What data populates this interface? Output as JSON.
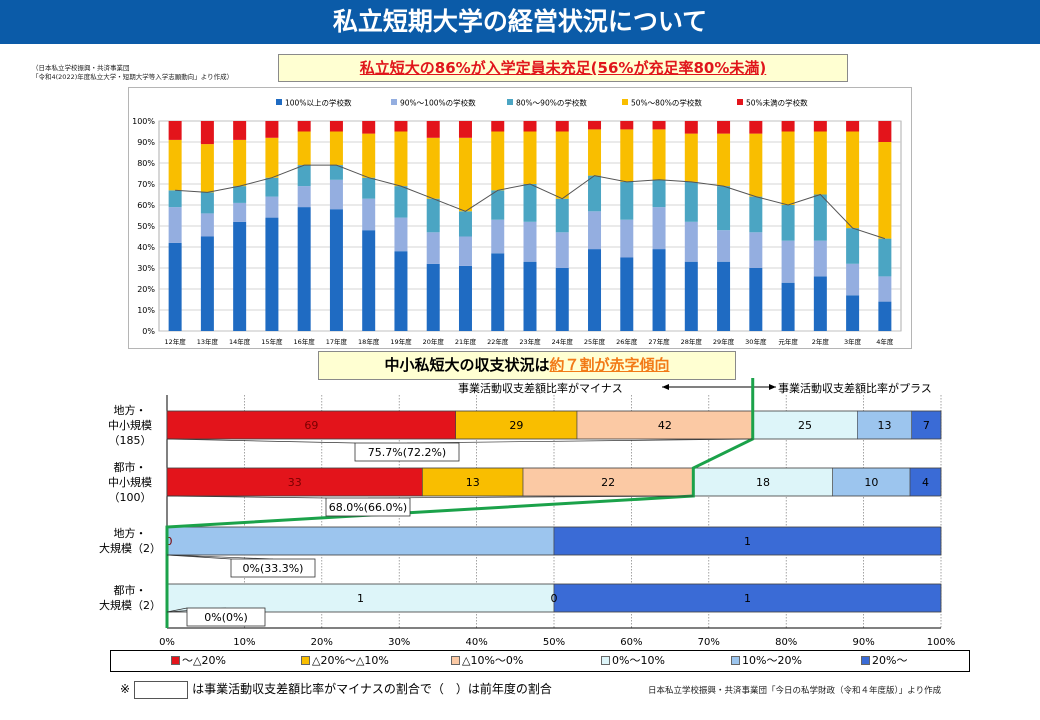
{
  "title": "私立短期大学の経営状況について",
  "source_top": [
    "（日本私立学校振興・共済事業団",
    "「令和4(2022)年度私立大学・短期大学等入学志願動向」より作成）"
  ],
  "callout_1": "私立短大の86%が入学定員未充足(56%が充足率80%未満)",
  "callout_2": {
    "prefix": "中小私短大の収支状況は",
    "emphasis": "約７割が赤字傾向"
  },
  "source_bottom": "日本私立学校振興・共済事業団「今日の私学財政（令和４年度版）」より作成",
  "note": {
    "mark": "※",
    "text": "は事業活動収支差額比率がマイナスの割合で（　）は前年度の割合"
  },
  "arrows": {
    "minus": "事業活動収支差額比率がマイナス",
    "plus": "事業活動収支差額比率がプラス"
  },
  "chart_data": [
    {
      "type": "bar",
      "stacked": true,
      "categories": [
        "12年度",
        "13年度",
        "14年度",
        "15年度",
        "16年度",
        "17年度",
        "18年度",
        "19年度",
        "20年度",
        "21年度",
        "22年度",
        "23年度",
        "24年度",
        "25年度",
        "26年度",
        "27年度",
        "28年度",
        "29年度",
        "30年度",
        "元年度",
        "2年度",
        "3年度",
        "4年度"
      ],
      "series": [
        {
          "name": "100%以上の学校数",
          "color": "#1f6bc2",
          "values": [
            42,
            45,
            52,
            54,
            59,
            58,
            48,
            38,
            32,
            31,
            37,
            33,
            30,
            39,
            35,
            39,
            33,
            33,
            30,
            23,
            26,
            17,
            14
          ]
        },
        {
          "name": "90%～100%の学校数",
          "color": "#94aee0",
          "values": [
            17,
            11,
            9,
            10,
            10,
            14,
            15,
            16,
            15,
            14,
            16,
            19,
            17,
            18,
            18,
            20,
            19,
            15,
            17,
            20,
            17,
            15,
            12
          ]
        },
        {
          "name": "80%～90%の学校数",
          "color": "#4ba5c3",
          "values": [
            8,
            10,
            8,
            9,
            10,
            7,
            10,
            15,
            16,
            12,
            14,
            18,
            16,
            17,
            18,
            13,
            19,
            21,
            17,
            17,
            22,
            17,
            18
          ]
        },
        {
          "name": "50%～80%の学校数",
          "color": "#f9be00",
          "values": [
            24,
            23,
            22,
            19,
            16,
            16,
            21,
            26,
            29,
            35,
            28,
            25,
            32,
            22,
            25,
            24,
            23,
            25,
            30,
            35,
            30,
            46,
            46
          ]
        },
        {
          "name": "50%未満の学校数",
          "color": "#e3141b",
          "values": [
            9,
            11,
            9,
            8,
            5,
            5,
            6,
            5,
            8,
            8,
            5,
            5,
            5,
            4,
            4,
            4,
            6,
            6,
            6,
            5,
            5,
            5,
            10
          ]
        }
      ],
      "line": {
        "values": [
          67,
          66,
          69,
          73,
          79,
          79,
          73,
          69,
          63,
          57,
          67,
          70,
          63,
          74,
          71,
          72,
          71,
          69,
          64,
          60,
          65,
          49,
          44
        ]
      },
      "yticks": [
        "0%",
        "10%",
        "20%",
        "30%",
        "40%",
        "50%",
        "60%",
        "70%",
        "80%",
        "90%",
        "100%"
      ],
      "ylim": [
        0,
        100
      ],
      "legend_position": "top",
      "grid": true
    },
    {
      "type": "bar",
      "stacked": true,
      "orientation": "horizontal",
      "legend": [
        {
          "name": "～△20%",
          "color": "#e3141b"
        },
        {
          "name": "△20%～△10%",
          "color": "#f9be00"
        },
        {
          "name": "△10%～0%",
          "color": "#fbc9a4"
        },
        {
          "name": "0%～10%",
          "color": "#ddf5f9"
        },
        {
          "name": "10%～20%",
          "color": "#9cc5ee"
        },
        {
          "name": "20%～",
          "color": "#3a6bd6"
        }
      ],
      "rows": [
        {
          "label": [
            "地方・",
            "中小規模",
            "（185）"
          ],
          "counts": [
            69,
            29,
            42,
            25,
            13,
            7
          ],
          "labels": [
            "69",
            "29",
            "42",
            "25",
            "13",
            "7"
          ],
          "ratio_label": "75.7%(72.2%)"
        },
        {
          "label": [
            "都市・",
            "中小規模",
            "（100）"
          ],
          "counts": [
            33,
            13,
            22,
            18,
            10,
            4
          ],
          "labels": [
            "33",
            "13",
            "22",
            "18",
            "10",
            "4"
          ],
          "ratio_label": "68.0%(66.0%)"
        },
        {
          "label": [
            "地方・",
            "大規模（2）"
          ],
          "counts": [
            0,
            0,
            0,
            0,
            1,
            1
          ],
          "labels": [
            "0",
            "",
            "",
            "",
            "",
            "1"
          ],
          "ratio_label": "0%(33.3%)"
        },
        {
          "label": [
            "都市・",
            "大規模（2）"
          ],
          "counts": [
            0,
            0,
            0,
            1,
            0,
            1
          ],
          "labels": [
            "",
            "",
            "",
            "1",
            "0",
            "1"
          ],
          "ratio_label": "0%(0%)"
        }
      ],
      "xticks": [
        "0%",
        "10%",
        "20%",
        "30%",
        "40%",
        "50%",
        "60%",
        "70%",
        "80%",
        "90%",
        "100%"
      ],
      "xlim": [
        0,
        100
      ],
      "grid": true
    }
  ]
}
